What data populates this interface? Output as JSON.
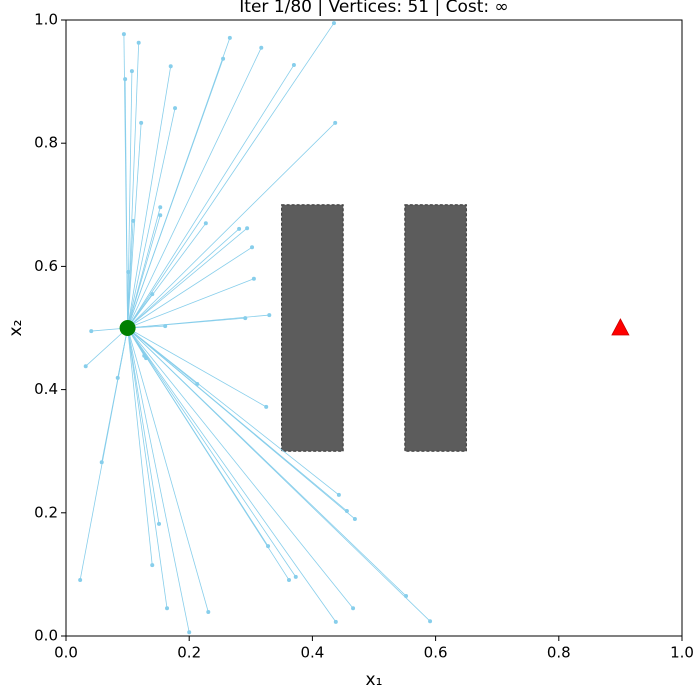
{
  "chart_data": {
    "type": "tree",
    "title": "Iter 1/80  |  Vertices: 51  |  Cost: ∞",
    "x_label": "x₁",
    "y_label": "x₂",
    "xlim": [
      0,
      1
    ],
    "ylim": [
      0,
      1
    ],
    "xticks": [
      {
        "value": 0,
        "label": "0.0"
      },
      {
        "value": 0.2,
        "label": "0.2"
      },
      {
        "value": 0.4,
        "label": "0.4"
      },
      {
        "value": 0.6,
        "label": "0.6"
      },
      {
        "value": 0.8,
        "label": "0.8"
      },
      {
        "value": 1,
        "label": "1.0"
      }
    ],
    "yticks": [
      {
        "value": 0,
        "label": "0.0"
      },
      {
        "value": 0.2,
        "label": "0.2"
      },
      {
        "value": 0.4,
        "label": "0.4"
      },
      {
        "value": 0.6,
        "label": "0.6"
      },
      {
        "value": 0.8,
        "label": "0.8"
      },
      {
        "value": 1,
        "label": "1.0"
      }
    ],
    "tree_color": "#87ceeb",
    "obstacle_color": "#5c5c5c",
    "obstacles": [
      {
        "x": [
          0.35,
          0.45
        ],
        "y": [
          0.3,
          0.7
        ]
      },
      {
        "x": [
          0.55,
          0.65
        ],
        "y": [
          0.3,
          0.7
        ]
      }
    ],
    "start": {
      "x": 0.1,
      "y": 0.5,
      "color": "#008000"
    },
    "goal": {
      "x": 0.9,
      "y": 0.5,
      "color": "#ff0000"
    },
    "x": [
      0.094,
      0.118,
      0.096,
      0.107,
      0.17,
      0.122,
      0.177,
      0.266,
      0.255,
      0.317,
      0.37,
      0.435,
      0.437,
      0.153,
      0.153,
      0.109,
      0.227,
      0.281,
      0.294,
      0.302,
      0.305,
      0.101,
      0.14,
      0.33,
      0.291,
      0.161,
      0.041,
      0.032,
      0.127,
      0.13,
      0.213,
      0.084,
      0.325,
      0.443,
      0.456,
      0.469,
      0.058,
      0.151,
      0.14,
      0.023,
      0.164,
      0.231,
      0.2,
      0.328,
      0.362,
      0.373,
      0.438,
      0.466,
      0.552,
      0.591
    ],
    "values": [
      0.977,
      0.963,
      0.904,
      0.917,
      0.925,
      0.833,
      0.857,
      0.971,
      0.937,
      0.955,
      0.927,
      0.995,
      0.833,
      0.696,
      0.683,
      0.674,
      0.67,
      0.661,
      0.662,
      0.631,
      0.58,
      0.591,
      0.555,
      0.521,
      0.516,
      0.503,
      0.495,
      0.438,
      0.455,
      0.451,
      0.409,
      0.419,
      0.372,
      0.229,
      0.203,
      0.19,
      0.282,
      0.182,
      0.115,
      0.091,
      0.045,
      0.039,
      0.006,
      0.146,
      0.091,
      0.096,
      0.023,
      0.045,
      0.065,
      0.024
    ]
  }
}
